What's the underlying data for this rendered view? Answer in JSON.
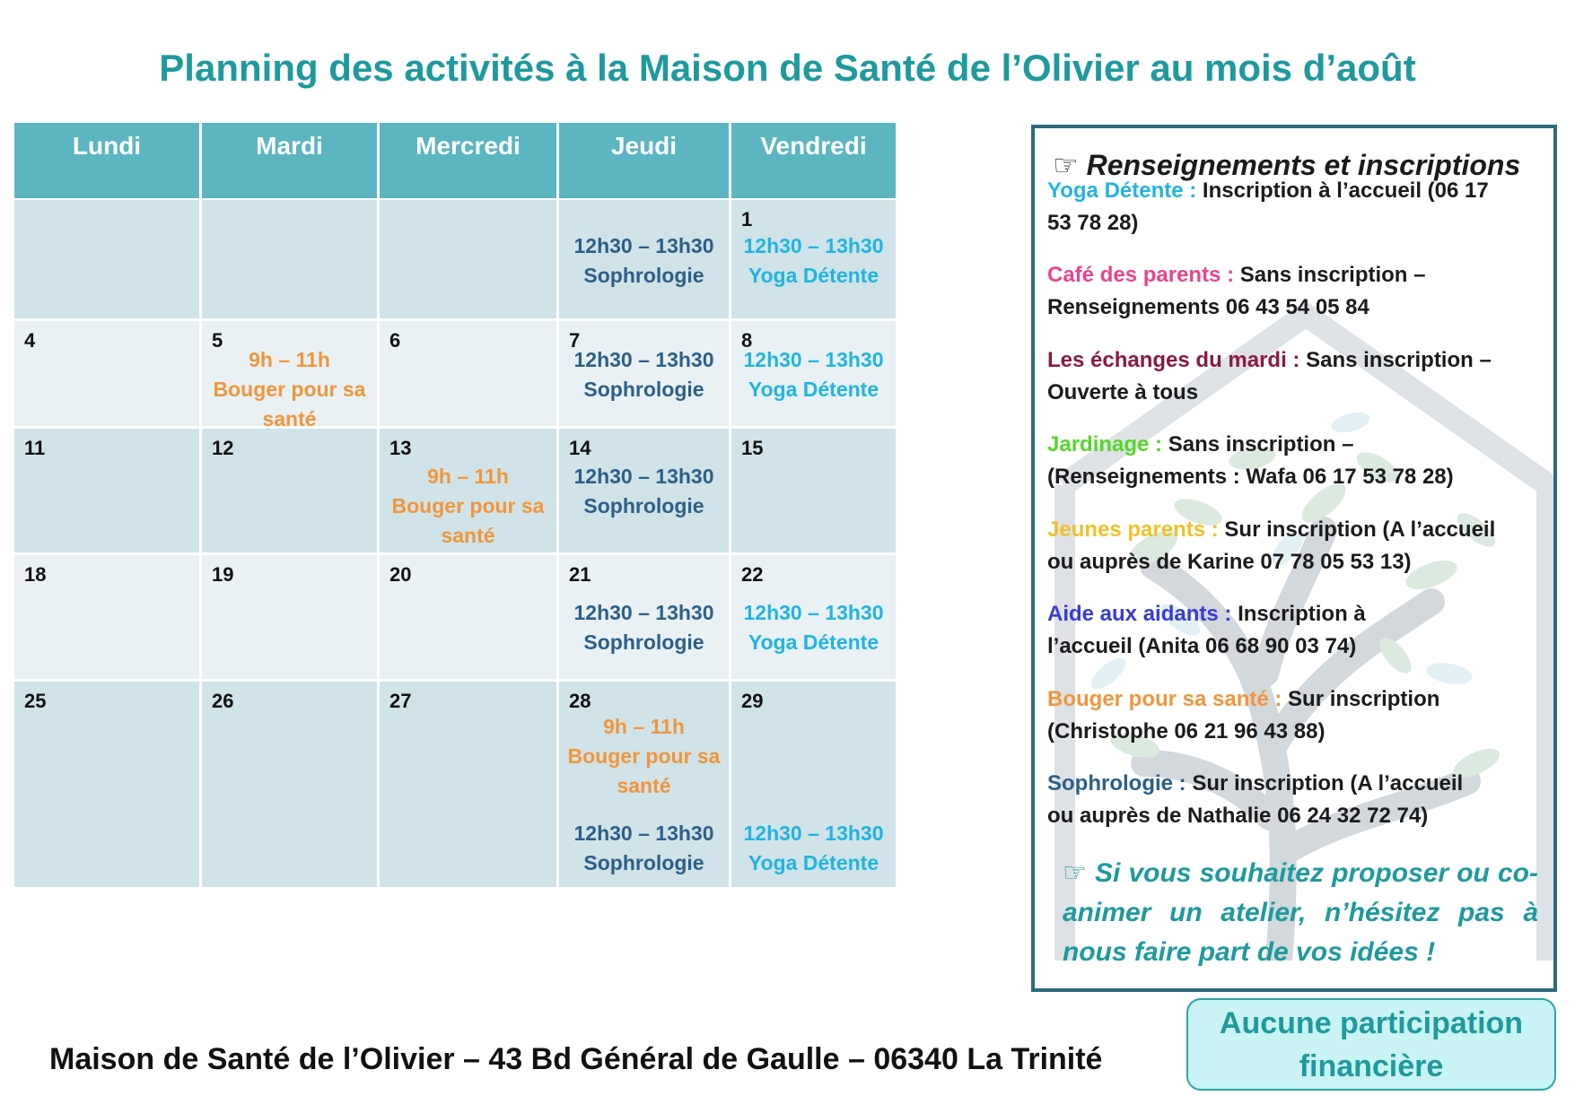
{
  "title": "Planning des activités à la Maison de Santé de l’Olivier au mois d’août",
  "calendar": {
    "headers": [
      "Lundi",
      "Mardi",
      "Mercredi",
      "Jeudi",
      "Vendredi"
    ],
    "rows": [
      [
        {
          "day": "",
          "events": []
        },
        {
          "day": "",
          "events": []
        },
        {
          "day": "",
          "events": []
        },
        {
          "day": "",
          "events": [
            {
              "time": "12h30 – 13h30",
              "name": "Sophrologie",
              "type": "soph"
            }
          ]
        },
        {
          "day": "1",
          "events": [
            {
              "time": "12h30 – 13h30",
              "name": "Yoga Détente",
              "type": "yoga"
            }
          ]
        }
      ],
      [
        {
          "day": "4",
          "events": []
        },
        {
          "day": "5",
          "events": [
            {
              "time": "9h – 11h",
              "name": "Bouger pour sa",
              "name2": "santé",
              "type": "bouger"
            }
          ]
        },
        {
          "day": "6",
          "events": []
        },
        {
          "day": "7",
          "events": [
            {
              "time": "12h30 – 13h30",
              "name": "Sophrologie",
              "type": "soph"
            }
          ]
        },
        {
          "day": "8",
          "events": [
            {
              "time": "12h30 – 13h30",
              "name": "Yoga Détente",
              "type": "yoga"
            }
          ]
        }
      ],
      [
        {
          "day": "11",
          "events": []
        },
        {
          "day": "12",
          "events": []
        },
        {
          "day": "13",
          "events": [
            {
              "time": "9h – 11h",
              "name": "Bouger pour sa",
              "name2": "santé",
              "type": "bouger"
            }
          ]
        },
        {
          "day": "14",
          "events": [
            {
              "time": "12h30 – 13h30",
              "name": "Sophrologie",
              "type": "soph"
            }
          ]
        },
        {
          "day": "15",
          "events": []
        }
      ],
      [
        {
          "day": "18",
          "events": []
        },
        {
          "day": "19",
          "events": []
        },
        {
          "day": "20",
          "events": []
        },
        {
          "day": "21",
          "events": [
            {
              "time": "12h30 – 13h30",
              "name": "Sophrologie",
              "type": "soph"
            }
          ]
        },
        {
          "day": "22",
          "events": [
            {
              "time": "12h30 – 13h30",
              "name": "Yoga Détente",
              "type": "yoga"
            }
          ]
        }
      ],
      [
        {
          "day": "25",
          "events": []
        },
        {
          "day": "26",
          "events": []
        },
        {
          "day": "27",
          "events": []
        },
        {
          "day": "28",
          "events": [
            {
              "time": "9h – 11h",
              "name": "Bouger pour sa",
              "name2": "santé",
              "type": "bouger"
            },
            {
              "time": "12h30 – 13h30",
              "name": "Sophrologie",
              "type": "soph"
            }
          ]
        },
        {
          "day": "29",
          "events": [
            {
              "time": "12h30 – 13h30",
              "name": "Yoga Détente",
              "type": "yoga"
            }
          ]
        }
      ]
    ]
  },
  "panel": {
    "title": "Renseignements et inscriptions",
    "icon": "pointing-hand-icon",
    "items": [
      {
        "label": "Yoga Détente :",
        "color": "#21b4e2",
        "text": "Inscription à l’accueil (06 17",
        "text2": "53 78 28)"
      },
      {
        "label": "Café des parents :",
        "color": "#e8458a",
        "text": "Sans inscription –",
        "text2": "Renseignements 06 43 54 05 84"
      },
      {
        "label": "Les échanges du mardi :",
        "color": "#8b1a3e",
        "text": "Sans inscription –",
        "text2": "Ouverte à tous"
      },
      {
        "label": "Jardinage :",
        "color": "#56d62a",
        "text": "Sans inscription –",
        "text2": "(Renseignements : Wafa 06 17 53 78 28)"
      },
      {
        "label": "Jeunes parents :",
        "color": "#f1c12a",
        "text": "Sur inscription (A l’accueil",
        "text2": "ou auprès de Karine 07 78 05 53 13)"
      },
      {
        "label": "Aide aux aidants :",
        "color": "#3a3ad6",
        "text": "Inscription à",
        "text2": "l’accueil (Anita 06 68 90 03 74)"
      },
      {
        "label": "Bouger pour sa santé :",
        "color": "#f0963c",
        "text": "Sur inscription",
        "text2": "(Christophe 06 21 96 43 88)"
      },
      {
        "label": "Sophrologie :",
        "color": "#2c5f8a",
        "text": "Sur inscription (A l’accueil",
        "text2": "ou auprès de Nathalie 06 24 32 72 74)"
      }
    ],
    "proposal": "Si vous souhaitez proposer ou co-animer un atelier, n’hésitez pas à nous faire part de vos idées !"
  },
  "footer": "Maison de Santé de l’Olivier – 43 Bd Général de Gaulle – 06340 La Trinité",
  "badge": {
    "line1": "Aucune participation",
    "line2": "financière"
  },
  "colors": {
    "header": "#5bb6c1",
    "title": "#1e9a9d",
    "panel_border": "#2a6b80"
  }
}
